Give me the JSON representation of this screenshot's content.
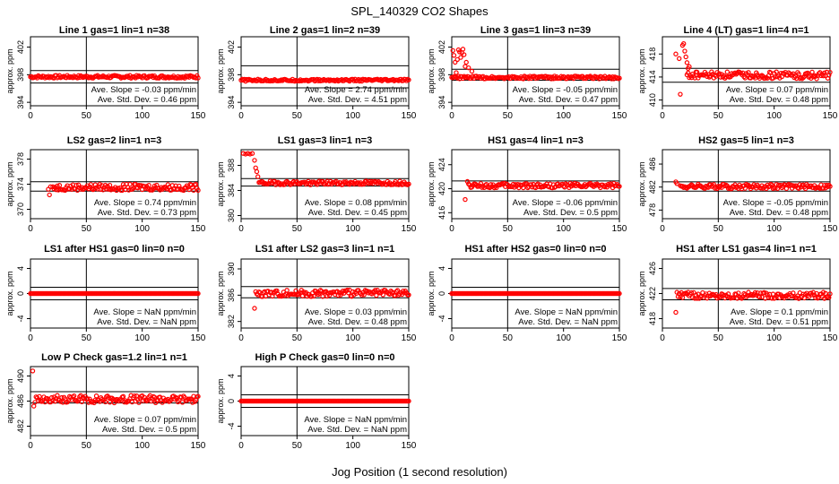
{
  "figure": {
    "title": "SPL_140329  CO2 Shapes",
    "xlabel": "Jog Position (1 second resolution)",
    "ylabel": "approx. ppm",
    "slope_prefix": "Ave. Slope = ",
    "slope_unit": "ppm/min",
    "std_prefix": "Ave. Std. Dev. = ",
    "std_unit": "ppm",
    "marker_color": "#ff0000",
    "axis_color": "#000000"
  },
  "chart_data": [
    {
      "type": "scatter",
      "title": "Line 1 gas=1 lin=1 n=38",
      "xlim": [
        0,
        150
      ],
      "xticks": [
        0,
        50,
        100,
        150
      ],
      "ylim": [
        393.5,
        403.5
      ],
      "yticks": [
        394,
        398,
        402
      ],
      "hlines": [
        396.8,
        398.6
      ],
      "vline": 50,
      "slope": "-0.03",
      "std": "0.46",
      "series": {
        "start": 0,
        "end": 150,
        "base": 397.7,
        "noise": 0.2,
        "early": []
      }
    },
    {
      "type": "scatter",
      "title": "Line 2 gas=1 lin=2 n=39",
      "xlim": [
        0,
        150
      ],
      "xticks": [
        0,
        50,
        100,
        150
      ],
      "ylim": [
        393.5,
        403.5
      ],
      "yticks": [
        394,
        398,
        402
      ],
      "hlines": [
        396.1,
        399.3
      ],
      "vline": 50,
      "slope": "2.74",
      "std": "4.51",
      "series": {
        "start": 0,
        "end": 150,
        "base": 397.2,
        "noise": 0.15,
        "early": []
      }
    },
    {
      "type": "scatter",
      "title": "Line 3 gas=1 lin=3 n=39",
      "xlim": [
        0,
        150
      ],
      "xticks": [
        0,
        50,
        100,
        150
      ],
      "ylim": [
        393.5,
        403.5
      ],
      "yticks": [
        394,
        398,
        402
      ],
      "hlines": [
        397.2,
        398.8
      ],
      "vline": 50,
      "slope": "-0.05",
      "std": "0.47",
      "series": {
        "start": 0,
        "end": 150,
        "base": 397.6,
        "noise": 0.2,
        "early": [
          [
            1,
            401.5
          ],
          [
            2,
            400.8
          ],
          [
            3,
            399.8
          ],
          [
            4,
            398.3
          ],
          [
            5,
            400.2
          ],
          [
            6,
            401.6
          ],
          [
            7,
            401.3
          ],
          [
            8,
            400.5
          ],
          [
            9,
            401.2
          ],
          [
            10,
            401.7
          ],
          [
            11,
            400.9
          ],
          [
            12,
            399.2
          ],
          [
            13,
            399.8
          ],
          [
            15,
            399
          ],
          [
            18,
            398.5
          ]
        ]
      }
    },
    {
      "type": "scatter",
      "title": "Line 4 (LT) gas=1 lin=4 n=1",
      "xlim": [
        0,
        150
      ],
      "xticks": [
        0,
        50,
        100,
        150
      ],
      "ylim": [
        409,
        421
      ],
      "yticks": [
        410,
        414,
        418
      ],
      "hlines": [
        413.1,
        415.5
      ],
      "vline": 50,
      "slope": "0.07",
      "std": "0.48",
      "series": {
        "start": 22,
        "end": 150,
        "base": 414.3,
        "noise": 0.6,
        "early": [
          [
            12,
            418
          ],
          [
            15,
            417.2
          ],
          [
            16,
            411
          ],
          [
            18,
            419.5
          ],
          [
            19,
            419.8
          ],
          [
            20,
            418.5
          ],
          [
            21,
            417.5
          ],
          [
            22,
            416.5
          ],
          [
            23,
            415.5
          ],
          [
            24,
            415.8
          ]
        ]
      }
    },
    {
      "type": "scatter",
      "title": "LS2 gas=2 lin=1 n=3",
      "xlim": [
        0,
        150
      ],
      "xticks": [
        0,
        50,
        100,
        150
      ],
      "ylim": [
        368.5,
        379.5
      ],
      "yticks": [
        370,
        374,
        378
      ],
      "hlines": [
        372.9,
        374.4
      ],
      "vline": 50,
      "slope": "0.74",
      "std": "0.73",
      "series": {
        "start": 20,
        "end": 150,
        "base": 373.5,
        "noise": 0.5,
        "early": [
          [
            16,
            373.2
          ],
          [
            17,
            372.3
          ],
          [
            18,
            373.6
          ]
        ]
      }
    },
    {
      "type": "scatter",
      "title": "LS1 gas=3 lin=1 n=3",
      "xlim": [
        0,
        150
      ],
      "xticks": [
        0,
        50,
        100,
        150
      ],
      "ylim": [
        379.5,
        390.5
      ],
      "yticks": [
        380,
        384,
        388
      ],
      "hlines": [
        384.7,
        385.9
      ],
      "vline": 50,
      "slope": "0.08",
      "std": "0.45",
      "series": {
        "start": 16,
        "end": 150,
        "base": 385.2,
        "noise": 0.3,
        "early": [
          [
            2,
            389.9
          ],
          [
            4,
            389.8
          ],
          [
            6,
            389.9
          ],
          [
            8,
            389.8
          ],
          [
            10,
            389.9
          ],
          [
            12,
            388.8
          ],
          [
            13,
            387.6
          ],
          [
            14,
            387
          ],
          [
            15,
            386.2
          ]
        ]
      }
    },
    {
      "type": "scatter",
      "title": "HS1 gas=4 lin=1 n=3",
      "xlim": [
        0,
        150
      ],
      "xticks": [
        0,
        50,
        100,
        150
      ],
      "ylim": [
        415,
        426.5
      ],
      "yticks": [
        416,
        420,
        424
      ],
      "hlines": [
        419.6,
        421.3
      ],
      "vline": 50,
      "slope": "-0.06",
      "std": "0.5",
      "series": {
        "start": 16,
        "end": 150,
        "base": 420.5,
        "noise": 0.4,
        "early": [
          [
            12,
            418.2
          ],
          [
            14,
            421.2
          ],
          [
            15,
            420.8
          ]
        ]
      }
    },
    {
      "type": "scatter",
      "title": "HS2 gas=5 lin=1 n=3",
      "xlim": [
        0,
        150
      ],
      "xticks": [
        0,
        50,
        100,
        150
      ],
      "ylim": [
        476.5,
        488.5
      ],
      "yticks": [
        478,
        482,
        486
      ],
      "hlines": [
        481.3,
        482.9
      ],
      "vline": 50,
      "slope": "-0.05",
      "std": "0.48",
      "series": {
        "start": 16,
        "end": 150,
        "base": 482.1,
        "noise": 0.4,
        "early": [
          [
            12,
            482.9
          ],
          [
            13,
            482.6
          ]
        ]
      }
    },
    {
      "type": "scatter",
      "title": "LS1 after HS1 gas=0 lin=0 n=0",
      "xlim": [
        0,
        150
      ],
      "xticks": [
        0,
        50,
        100,
        150
      ],
      "ylim": [
        -5.5,
        5.5
      ],
      "yticks": [
        -4,
        0,
        4
      ],
      "hlines": [
        -1,
        1
      ],
      "vline": 50,
      "slope": "NaN",
      "std": "NaN",
      "series": {
        "start": 0,
        "end": 150,
        "base": 0,
        "noise": 0,
        "early": []
      }
    },
    {
      "type": "scatter",
      "title": "LS1 after LS2 gas=3 lin=1 n=1",
      "xlim": [
        0,
        150
      ],
      "xticks": [
        0,
        50,
        100,
        150
      ],
      "ylim": [
        381,
        391.5
      ],
      "yticks": [
        382,
        386,
        390
      ],
      "hlines": [
        385.6,
        387.3
      ],
      "vline": 50,
      "slope": "0.03",
      "std": "0.48",
      "series": {
        "start": 13,
        "end": 150,
        "base": 386.3,
        "noise": 0.5,
        "early": [
          [
            12,
            384
          ]
        ]
      }
    },
    {
      "type": "scatter",
      "title": "HS1 after HS2 gas=0 lin=0 n=0",
      "xlim": [
        0,
        150
      ],
      "xticks": [
        0,
        50,
        100,
        150
      ],
      "ylim": [
        -5.5,
        5.5
      ],
      "yticks": [
        -4,
        0,
        4
      ],
      "hlines": [
        -1,
        1
      ],
      "vline": 50,
      "slope": "NaN",
      "std": "NaN",
      "series": {
        "start": 0,
        "end": 150,
        "base": 0,
        "noise": 0,
        "early": []
      }
    },
    {
      "type": "scatter",
      "title": "HS1 after LS1 gas=4 lin=1 n=1",
      "xlim": [
        0,
        150
      ],
      "xticks": [
        0,
        50,
        100,
        150
      ],
      "ylim": [
        416.5,
        427.5
      ],
      "yticks": [
        418,
        422,
        426
      ],
      "hlines": [
        421,
        422.8
      ],
      "vline": 50,
      "slope": "0.1",
      "std": "0.51",
      "series": {
        "start": 15,
        "end": 150,
        "base": 421.7,
        "noise": 0.5,
        "early": [
          [
            12,
            419
          ],
          [
            13,
            422.2
          ],
          [
            14,
            421.5
          ]
        ]
      }
    },
    {
      "type": "scatter",
      "title": "Low P Check gas=1.2 lin=1 n=1",
      "xlim": [
        0,
        150
      ],
      "xticks": [
        0,
        50,
        100,
        150
      ],
      "ylim": [
        480.5,
        491.5
      ],
      "yticks": [
        482,
        486,
        490
      ],
      "hlines": [
        485.7,
        487.5
      ],
      "vline": 50,
      "slope": "0.07",
      "std": "0.5",
      "series": {
        "start": 5,
        "end": 150,
        "base": 486.3,
        "noise": 0.6,
        "early": [
          [
            2,
            490.8
          ],
          [
            3,
            485.2
          ],
          [
            4,
            485.8
          ]
        ]
      }
    },
    {
      "type": "scatter",
      "title": "High P Check gas=0 lin=0 n=0",
      "xlim": [
        0,
        150
      ],
      "xticks": [
        0,
        50,
        100,
        150
      ],
      "ylim": [
        -5.5,
        5.5
      ],
      "yticks": [
        -4,
        0,
        4
      ],
      "hlines": [
        -1,
        1
      ],
      "vline": 50,
      "slope": "NaN",
      "std": "NaN",
      "series": {
        "start": 0,
        "end": 150,
        "base": 0,
        "noise": 0,
        "early": []
      }
    }
  ]
}
